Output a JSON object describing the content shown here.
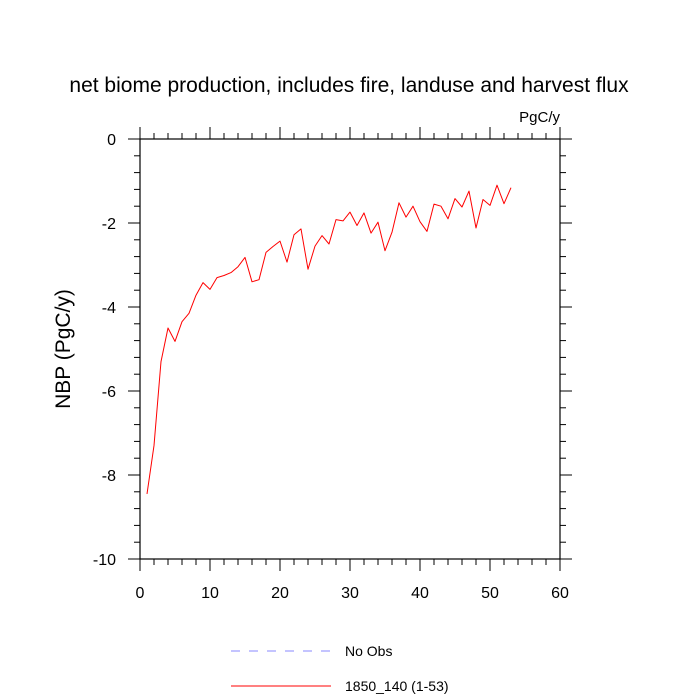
{
  "chart_data": {
    "type": "line",
    "title": "net biome production, includes fire, landuse and harvest flux",
    "units": "PgC/y",
    "xlabel": "",
    "ylabel": "NBP  (PgC/y)",
    "xlim": [
      0,
      60
    ],
    "ylim": [
      -10,
      0
    ],
    "xticks": [
      0,
      10,
      20,
      30,
      40,
      50,
      60
    ],
    "yticks": [
      0,
      -2,
      -4,
      -6,
      -8,
      -10
    ],
    "xtick_labels": [
      "0",
      "10",
      "20",
      "30",
      "40",
      "50",
      "60"
    ],
    "ytick_labels": [
      "0",
      "-2",
      "-4",
      "-6",
      "-8",
      "-10"
    ],
    "grid": false,
    "legend_position": "bottom-center",
    "series": [
      {
        "name": "1850_140 (1-53)",
        "color": "#ff0000",
        "dash": "solid",
        "x": [
          1,
          2,
          3,
          4,
          5,
          6,
          7,
          8,
          9,
          10,
          11,
          12,
          13,
          14,
          15,
          16,
          17,
          18,
          19,
          20,
          21,
          22,
          23,
          24,
          25,
          26,
          27,
          28,
          29,
          30,
          31,
          32,
          33,
          34,
          35,
          36,
          37,
          38,
          39,
          40,
          41,
          42,
          43,
          44,
          45,
          46,
          47,
          48,
          49,
          50,
          51,
          52,
          53
        ],
        "values": [
          -8.45,
          -7.3,
          -5.3,
          -4.5,
          -4.82,
          -4.35,
          -4.15,
          -3.72,
          -3.42,
          -3.58,
          -3.3,
          -3.25,
          -3.18,
          -3.04,
          -2.82,
          -3.4,
          -3.35,
          -2.7,
          -2.56,
          -2.43,
          -2.93,
          -2.28,
          -2.14,
          -3.1,
          -2.55,
          -2.3,
          -2.5,
          -1.92,
          -1.95,
          -1.74,
          -2.06,
          -1.76,
          -2.24,
          -1.98,
          -2.66,
          -2.22,
          -1.52,
          -1.86,
          -1.6,
          -1.97,
          -2.2,
          -1.55,
          -1.6,
          -1.9,
          -1.42,
          -1.62,
          -1.24,
          -2.12,
          -1.44,
          -1.58,
          -1.1,
          -1.54,
          -1.16
        ]
      }
    ],
    "legend": [
      {
        "label": "No Obs",
        "color": "#8a8aff",
        "dash": "dashed"
      },
      {
        "label": "1850_140 (1-53)",
        "color": "#ff0000",
        "dash": "solid"
      }
    ]
  }
}
